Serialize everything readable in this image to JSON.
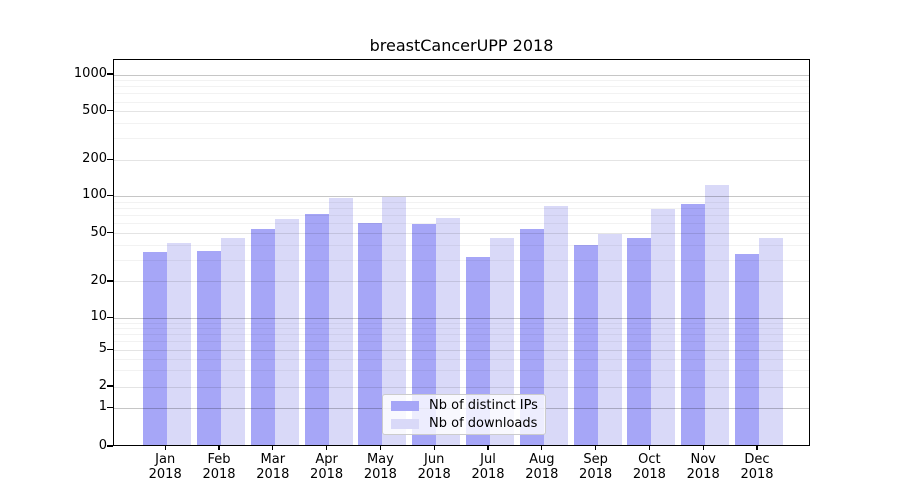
{
  "title": "breastCancerUPP 2018",
  "chart_data": {
    "type": "bar",
    "title": "breastCancerUPP 2018",
    "categories": [
      "Jan",
      "Feb",
      "Mar",
      "Apr",
      "May",
      "Jun",
      "Jul",
      "Aug",
      "Sep",
      "Oct",
      "Nov",
      "Dec"
    ],
    "year_label": "2018",
    "series": [
      {
        "name": "Nb of distinct IPs",
        "color": "#a6a6f7",
        "values": [
          34,
          35,
          53,
          70,
          59,
          58,
          31,
          53,
          39,
          44,
          84,
          33
        ]
      },
      {
        "name": "Nb of downloads",
        "color": "#d9d9f8",
        "values": [
          40,
          44,
          63,
          93,
          95,
          64,
          44,
          80,
          48,
          77,
          120,
          44
        ]
      }
    ],
    "y_ticks": [
      0,
      1,
      2,
      5,
      10,
      20,
      50,
      100,
      200,
      500,
      1000
    ],
    "scale": "log-like, linear below 1",
    "ylim": [
      0,
      1400
    ],
    "grid": true,
    "legend_position": "lower center"
  }
}
